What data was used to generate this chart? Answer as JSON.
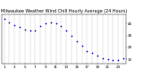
{
  "title": "Milwaukee Weather Wind Chill Hourly Average (24 Hours)",
  "x": [
    1,
    2,
    3,
    4,
    5,
    6,
    7,
    8,
    9,
    10,
    11,
    12,
    13,
    14,
    15,
    16,
    17,
    18,
    19,
    20,
    21,
    22,
    23,
    24
  ],
  "y": [
    44,
    41,
    39,
    37,
    35,
    34,
    34,
    38,
    40,
    41,
    40,
    38,
    34,
    30,
    25,
    21,
    17,
    15,
    13,
    11,
    10,
    9,
    9,
    11
  ],
  "dot_color": "#0000cc",
  "dot_size": 1.5,
  "background_color": "#ffffff",
  "grid_color": "#999999",
  "ylim": [
    6,
    48
  ],
  "xlim": [
    0.5,
    24.5
  ],
  "ytick_values": [
    10,
    20,
    30,
    40
  ],
  "ytick_labels": [
    "10",
    "20",
    "30",
    "40"
  ],
  "xtick_values": [
    1,
    3,
    5,
    7,
    9,
    11,
    13,
    15,
    17,
    19,
    21,
    23
  ],
  "xtick_labels": [
    "1",
    "3",
    "5",
    "7",
    "9",
    "11",
    "13",
    "15",
    "17",
    "19",
    "21",
    "23"
  ],
  "tick_fontsize": 3.0,
  "title_fontsize": 3.5
}
